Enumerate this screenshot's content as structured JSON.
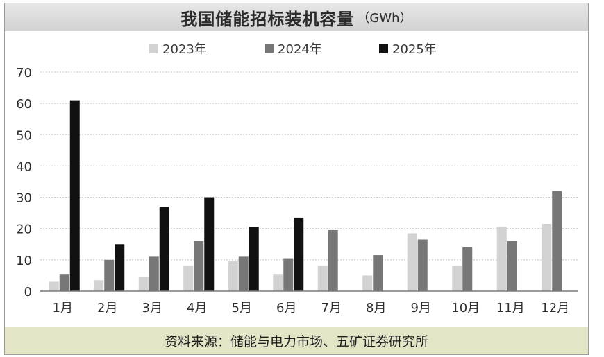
{
  "chart_data": {
    "type": "bar",
    "title": "我国储能招标装机容量",
    "unit": "（GWh）",
    "categories": [
      "1月",
      "2月",
      "3月",
      "4月",
      "5月",
      "6月",
      "7月",
      "8月",
      "9月",
      "10月",
      "11月",
      "12月"
    ],
    "series": [
      {
        "name": "2023年",
        "color": "#d2d2d2",
        "values": [
          3,
          3.5,
          4.5,
          8,
          9.5,
          5.5,
          8,
          5,
          18.5,
          8,
          20.5,
          21.5
        ]
      },
      {
        "name": "2024年",
        "color": "#777777",
        "values": [
          5.5,
          10,
          11,
          16,
          11,
          10.5,
          19.5,
          11.5,
          16.5,
          14,
          16,
          32
        ]
      },
      {
        "name": "2025年",
        "color": "#111111",
        "values": [
          61,
          15,
          27,
          30,
          20.5,
          23.5,
          null,
          null,
          null,
          null,
          null,
          null
        ]
      }
    ],
    "yticks": [
      0,
      10,
      20,
      30,
      40,
      50,
      60,
      70
    ],
    "ylim": [
      0,
      70
    ],
    "grid": true,
    "legend_position": "top"
  },
  "source": "资料来源：储能与电力市场、五矿证券研究所"
}
